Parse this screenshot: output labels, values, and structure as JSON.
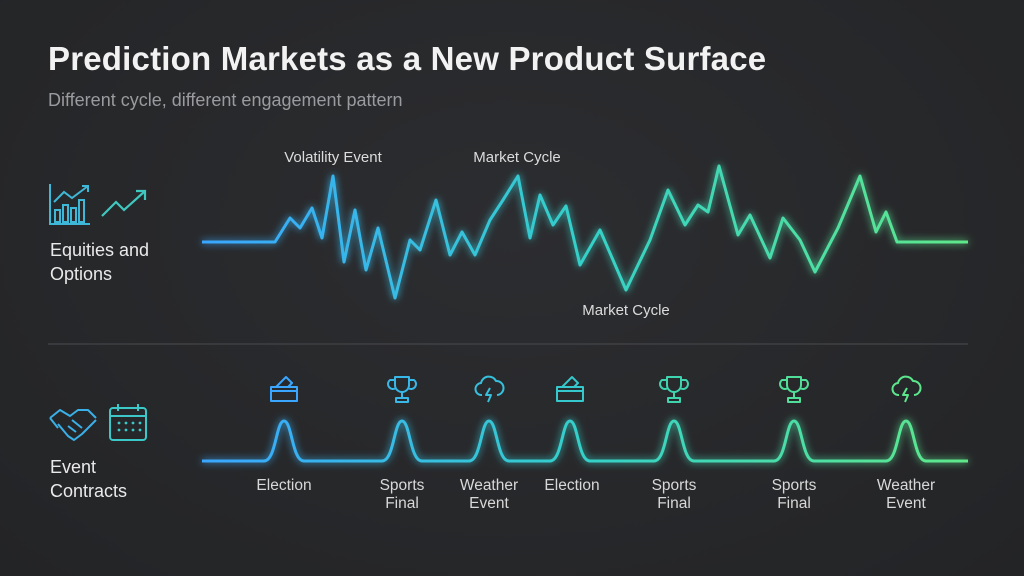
{
  "header": {
    "title": "Prediction Markets as a New Product Surface",
    "subtitle": "Different cycle, different engagement pattern"
  },
  "equities": {
    "label": "Equities and Options",
    "annotations": [
      "Volatility Event",
      "Market Cycle",
      "Market Cycle"
    ]
  },
  "events": {
    "label": "Event Contracts",
    "items": [
      "Election",
      "Sports Final",
      "Weather Event",
      "Election",
      "Sports Final",
      "Sports Final",
      "Weather Event"
    ]
  }
}
